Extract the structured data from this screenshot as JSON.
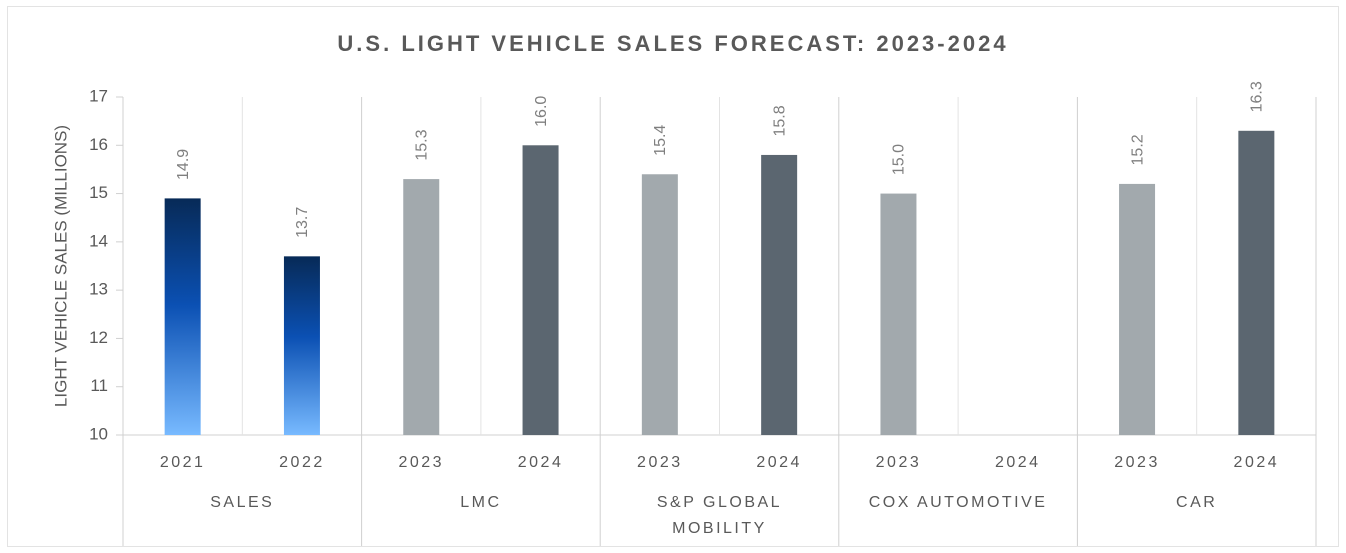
{
  "chart_data": {
    "type": "bar",
    "title": "U.S. LIGHT VEHICLE SALES FORECAST: 2023-2024",
    "y_label": "LIGHT VEHICLE SALES (MILLIONS)",
    "ylim": [
      10,
      17
    ],
    "yticks": [
      10,
      11,
      12,
      13,
      14,
      15,
      16,
      17
    ],
    "grid": false,
    "groups": [
      {
        "name": "SALES",
        "categories": [
          "2021",
          "2022"
        ],
        "values": [
          14.9,
          13.7
        ],
        "value_labels": [
          "14.9",
          "13.7"
        ],
        "gradient": [
          "#072a57",
          "#0b50b3",
          "#78baff"
        ]
      },
      {
        "name": "LMC",
        "categories": [
          "2023",
          "2024"
        ],
        "values": [
          15.3,
          16.0
        ],
        "value_labels": [
          "15.3",
          "16.0"
        ],
        "colors": [
          "#a2a9ad",
          "#5b6670"
        ]
      },
      {
        "name": "S&P GLOBAL MOBILITY",
        "categories": [
          "2023",
          "2024"
        ],
        "values": [
          15.4,
          15.8
        ],
        "value_labels": [
          "15.4",
          "15.8"
        ],
        "colors": [
          "#a2a9ad",
          "#5b6670"
        ]
      },
      {
        "name": "COX AUTOMOTIVE",
        "categories": [
          "2023",
          "2024"
        ],
        "values": [
          15.0,
          null
        ],
        "value_labels": [
          "15.0",
          null
        ],
        "colors": [
          "#a2a9ad",
          "#5b6670"
        ]
      },
      {
        "name": "CAR",
        "categories": [
          "2023",
          "2024"
        ],
        "values": [
          15.2,
          16.3
        ],
        "value_labels": [
          "15.2",
          "16.3"
        ],
        "colors": [
          "#a2a9ad",
          "#5b6670"
        ]
      }
    ]
  }
}
